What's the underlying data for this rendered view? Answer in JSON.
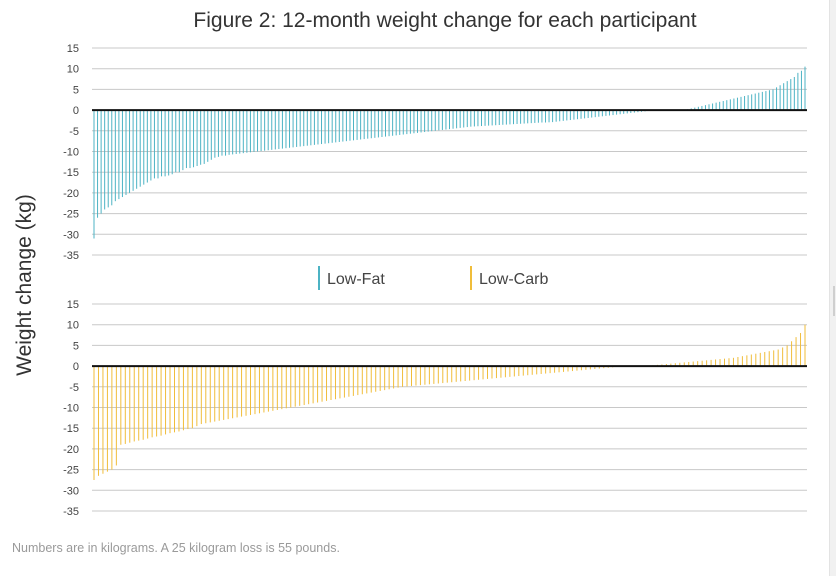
{
  "title": "Figure 2: 12-month weight change for each participant",
  "ylabel": "Weight change (kg)",
  "footnote": "Numbers are in kilograms. A 25 kilogram loss is 55 pounds.",
  "colors": {
    "low_fat": "#4cb3c4",
    "low_carb": "#f0bd3a",
    "zero_line": "#111111",
    "grid": "#c8c8c8"
  },
  "chart_data": [
    {
      "type": "bar",
      "series": [
        {
          "name": "Low-Fat",
          "values": [
            -31,
            -26,
            -25,
            -24,
            -23.5,
            -23,
            -22,
            -21.5,
            -21,
            -20.5,
            -20,
            -19.5,
            -19,
            -18.5,
            -18,
            -17.5,
            -17,
            -16.5,
            -16.5,
            -16,
            -16,
            -15.8,
            -15.5,
            -15,
            -15,
            -14.5,
            -14,
            -14,
            -13.8,
            -13.5,
            -13.2,
            -13,
            -12.5,
            -12,
            -11.5,
            -11.3,
            -11,
            -11,
            -10.8,
            -10.7,
            -10.6,
            -10.5,
            -10.4,
            -10.3,
            -10.2,
            -10.1,
            -10,
            -9.9,
            -9.8,
            -9.7,
            -9.6,
            -9.5,
            -9.4,
            -9.3,
            -9.2,
            -9.1,
            -9,
            -8.9,
            -8.8,
            -8.7,
            -8.6,
            -8.5,
            -8.4,
            -8.3,
            -8.2,
            -8.1,
            -8,
            -7.9,
            -7.8,
            -7.7,
            -7.6,
            -7.5,
            -7.4,
            -7.3,
            -7.2,
            -7.1,
            -7,
            -6.9,
            -6.8,
            -6.7,
            -6.6,
            -6.5,
            -6.4,
            -6.3,
            -6.2,
            -6.1,
            -6,
            -5.9,
            -5.8,
            -5.7,
            -5.6,
            -5.5,
            -5.4,
            -5.3,
            -5.2,
            -5.1,
            -5,
            -4.9,
            -4.8,
            -4.7,
            -4.6,
            -4.5,
            -4.4,
            -4.3,
            -4.2,
            -4.1,
            -4,
            -3.95,
            -3.9,
            -3.85,
            -3.8,
            -3.75,
            -3.7,
            -3.65,
            -3.6,
            -3.55,
            -3.5,
            -3.45,
            -3.4,
            -3.35,
            -3.3,
            -3.25,
            -3.2,
            -3.15,
            -3.1,
            -3.05,
            -3,
            -3,
            -2.95,
            -2.9,
            -2.8,
            -2.7,
            -2.6,
            -2.5,
            -2.4,
            -2.3,
            -2.2,
            -2.1,
            -2,
            -1.9,
            -1.8,
            -1.7,
            -1.6,
            -1.5,
            -1.4,
            -1.3,
            -1.2,
            -1.1,
            -1,
            -0.9,
            -0.8,
            -0.7,
            -0.6,
            -0.5,
            -0.4,
            -0.3,
            -0.2,
            -0.15,
            -0.1,
            -0.05,
            0,
            0,
            0,
            0,
            0,
            0,
            0,
            0.2,
            0.4,
            0.6,
            0.8,
            1,
            1.2,
            1.4,
            1.6,
            1.8,
            2,
            2.2,
            2.4,
            2.6,
            2.8,
            3,
            3.2,
            3.4,
            3.6,
            3.8,
            4,
            4.2,
            4.4,
            4.6,
            4.8,
            5,
            5.5,
            6,
            6.5,
            7,
            7.5,
            8,
            9,
            9.5,
            10.5
          ]
        }
      ],
      "ylim": [
        -35,
        15
      ],
      "yticks": [
        15,
        10,
        5,
        0,
        -5,
        -10,
        -15,
        -20,
        -25,
        -30,
        -35
      ],
      "grid": true
    },
    {
      "type": "bar",
      "series": [
        {
          "name": "Low-Carb",
          "values": [
            -27.5,
            -26.5,
            -26,
            -25.5,
            -25,
            -24,
            -19,
            -18.8,
            -18.5,
            -18.2,
            -18,
            -17.8,
            -17.5,
            -17.2,
            -17,
            -16.8,
            -16.5,
            -16.2,
            -16,
            -15.8,
            -15.5,
            -15.2,
            -15,
            -14.5,
            -14,
            -13.8,
            -13.6,
            -13.4,
            -13.2,
            -13,
            -12.8,
            -12.6,
            -12.4,
            -12.2,
            -12,
            -11.8,
            -11.6,
            -11.4,
            -11.2,
            -11,
            -10.8,
            -10.6,
            -10.4,
            -10.2,
            -10,
            -9.8,
            -9.6,
            -9.4,
            -9.2,
            -9,
            -8.8,
            -8.6,
            -8.4,
            -8.2,
            -8,
            -7.8,
            -7.6,
            -7.4,
            -7.2,
            -7,
            -6.8,
            -6.6,
            -6.4,
            -6.2,
            -6,
            -5.8,
            -5.6,
            -5.4,
            -5.2,
            -5,
            -4.9,
            -4.8,
            -4.7,
            -4.6,
            -4.5,
            -4.4,
            -4.3,
            -4.2,
            -4.1,
            -4,
            -3.9,
            -3.8,
            -3.7,
            -3.6,
            -3.5,
            -3.4,
            -3.3,
            -3.2,
            -3.1,
            -3,
            -2.9,
            -2.8,
            -2.7,
            -2.6,
            -2.5,
            -2.4,
            -2.3,
            -2.2,
            -2.1,
            -2,
            -1.9,
            -1.8,
            -1.7,
            -1.6,
            -1.5,
            -1.4,
            -1.3,
            -1.2,
            -1.1,
            -1,
            -0.9,
            -0.8,
            -0.7,
            -0.6,
            -0.5,
            -0.4,
            -0.3,
            -0.2,
            -0.1,
            0,
            0,
            0,
            0,
            0,
            0,
            0.2,
            0.3,
            0.4,
            0.5,
            0.6,
            0.7,
            0.8,
            0.9,
            1,
            1.1,
            1.2,
            1.3,
            1.4,
            1.5,
            1.6,
            1.7,
            1.8,
            1.9,
            2,
            2.2,
            2.4,
            2.6,
            2.8,
            3,
            3.2,
            3.4,
            3.6,
            3.8,
            4,
            4.5,
            5,
            6,
            7,
            8,
            10
          ]
        }
      ],
      "ylim": [
        -35,
        15
      ],
      "yticks": [
        15,
        10,
        5,
        0,
        -5,
        -10,
        -15,
        -20,
        -25,
        -30,
        -35
      ],
      "grid": true
    }
  ],
  "legend": [
    {
      "label": "Low-Fat",
      "color": "#4cb3c4"
    },
    {
      "label": "Low-Carb",
      "color": "#f0bd3a"
    }
  ]
}
